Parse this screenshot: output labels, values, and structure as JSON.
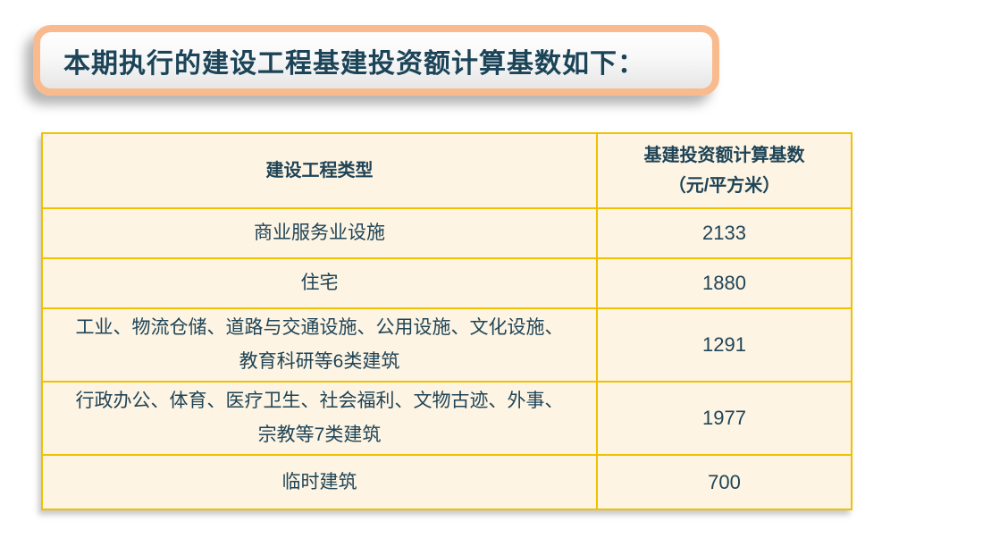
{
  "banner": {
    "title": "本期执行的建设工程基建投资额计算基数如下："
  },
  "table": {
    "header": {
      "col1": "建设工程类型",
      "col2_line1": "基建投资额计算基数",
      "col2_line2": "（元/平方米）"
    },
    "rows": [
      {
        "type": "商业服务业设施",
        "value": "2133"
      },
      {
        "type": "住宅",
        "value": "1880"
      },
      {
        "type": "工业、物流仓储、道路与交通设施、公用设施、文化设施、教育科研等6类建筑",
        "value": "1291"
      },
      {
        "type": "行政办公、体育、医疗卫生、社会福利、文物古迹、外事、宗教等7类建筑",
        "value": "1977"
      },
      {
        "type": "临时建筑",
        "value": "700"
      }
    ]
  },
  "colors": {
    "banner_border": "#F9BB8D",
    "table_border": "#EFC100",
    "cell_background": "#FDF4E3",
    "text": "#1F4457"
  }
}
